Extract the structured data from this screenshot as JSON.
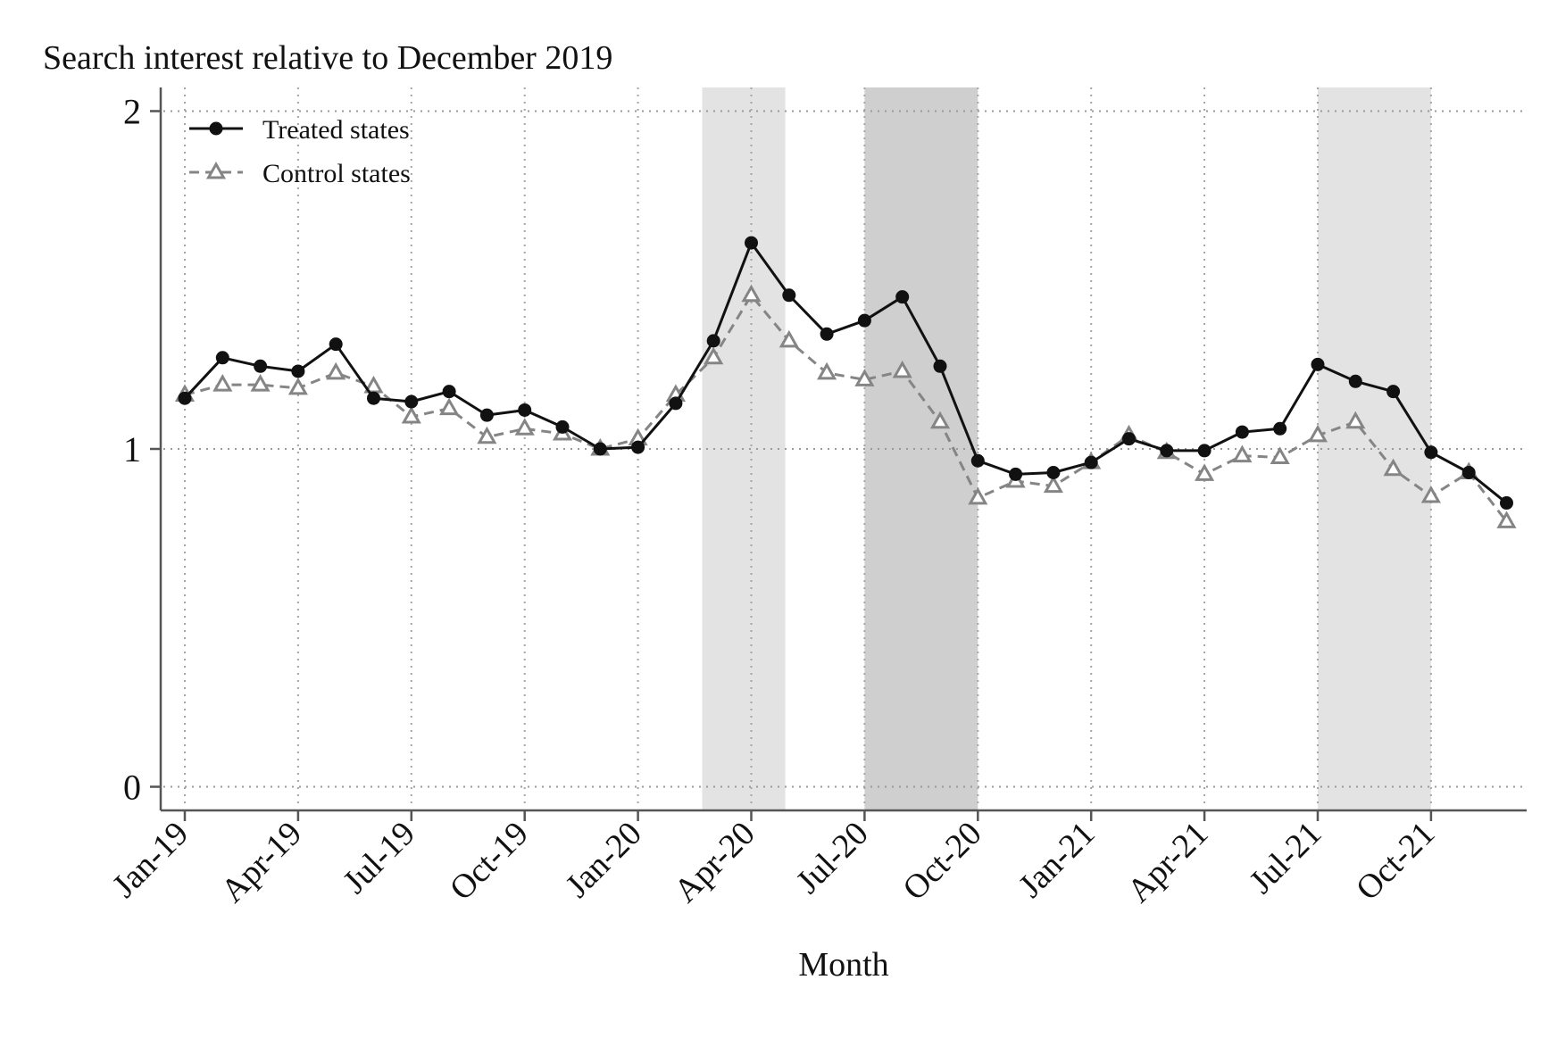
{
  "chart_data": {
    "type": "line",
    "title": "Search interest relative to December 2019",
    "xlabel": "Month",
    "ylabel": "",
    "ylim": [
      -0.07,
      2.07
    ],
    "yticks": [
      0,
      1,
      2
    ],
    "ytick_labels": [
      "0",
      "1",
      "2"
    ],
    "xtick_labels": [
      "Jan-19",
      "Apr-19",
      "Jul-19",
      "Oct-19",
      "Jan-20",
      "Apr-20",
      "Jul-20",
      "Oct-20",
      "Jan-21",
      "Apr-21",
      "Jul-21",
      "Oct-21"
    ],
    "xtick_month_index": [
      0,
      3,
      6,
      9,
      12,
      15,
      18,
      21,
      24,
      27,
      30,
      33
    ],
    "n_months": 36,
    "grid": true,
    "legend_position": "top-left",
    "shaded_periods": [
      {
        "start_month_index": 13.7,
        "end_month_index": 15.9,
        "shade": "light"
      },
      {
        "start_month_index": 18.0,
        "end_month_index": 21.0,
        "shade": "dark"
      },
      {
        "start_month_index": 30.0,
        "end_month_index": 33.0,
        "shade": "light"
      }
    ],
    "series": [
      {
        "name": "Treated states",
        "style": "solid",
        "marker": "circle",
        "color": "#111111",
        "values": [
          1.15,
          1.27,
          1.245,
          1.23,
          1.31,
          1.15,
          1.14,
          1.17,
          1.1,
          1.115,
          1.065,
          1.0,
          1.005,
          1.135,
          1.32,
          1.61,
          1.455,
          1.34,
          1.38,
          1.45,
          1.245,
          0.965,
          0.925,
          0.93,
          0.96,
          1.03,
          0.995,
          0.995,
          1.05,
          1.06,
          1.25,
          1.2,
          1.17,
          0.99,
          0.93,
          0.84
        ]
      },
      {
        "name": "Control states",
        "style": "dashed",
        "marker": "triangle",
        "color": "#858585",
        "values": [
          1.16,
          1.19,
          1.19,
          1.18,
          1.225,
          1.185,
          1.095,
          1.12,
          1.035,
          1.06,
          1.045,
          1.0,
          1.03,
          1.16,
          1.27,
          1.455,
          1.32,
          1.225,
          1.205,
          1.23,
          1.08,
          0.855,
          0.905,
          0.89,
          0.96,
          1.04,
          0.99,
          0.925,
          0.98,
          0.975,
          1.04,
          1.08,
          0.94,
          0.86,
          0.93,
          0.785
        ]
      }
    ]
  }
}
